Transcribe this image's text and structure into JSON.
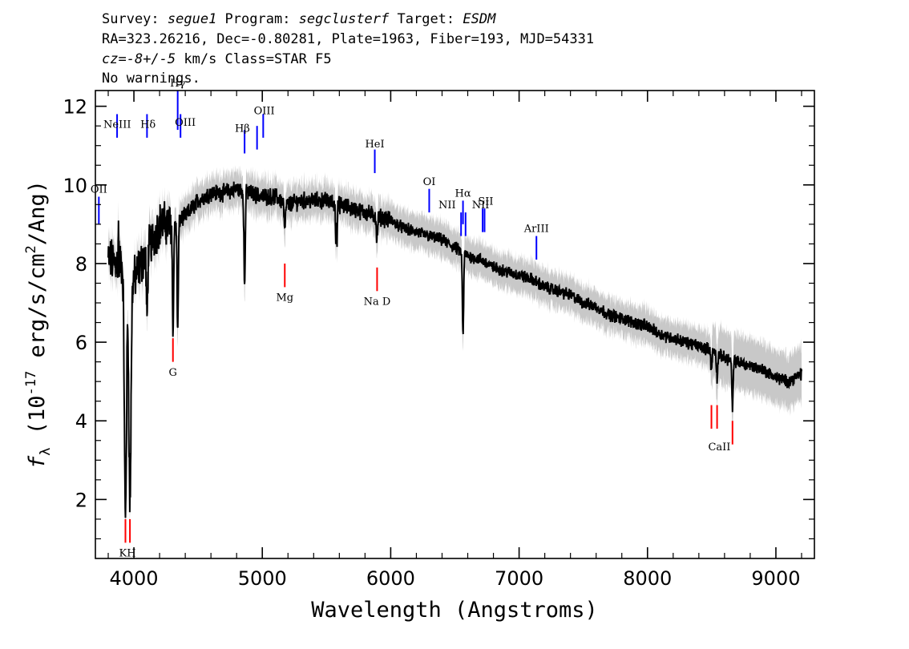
{
  "header": {
    "line1": {
      "survey_label": "Survey: ",
      "survey": "segue1",
      "program_label": " Program: ",
      "program": "segclusterf",
      "target_label": " Target: ",
      "target": "ESDM"
    },
    "line2": "RA=323.26216, Dec=-0.80281, Plate=1963, Fiber=193, MJD=54331",
    "line3": {
      "cz_label": "cz",
      "cz_value": "=-8+/-5",
      "cz_rest": " km/s Class=STAR F5"
    },
    "line4": "No warnings."
  },
  "chart_data": {
    "type": "line",
    "xlabel": "Wavelength (Angstroms)",
    "ylabel": {
      "symbol": "f",
      "subscript": "λ",
      "text_open": " (10",
      "exponent": "-17",
      "text_mid": " erg/s/cm",
      "exponent2": "2",
      "text_close": "/Ang)"
    },
    "xlim": [
      3700,
      9300
    ],
    "ylim": [
      0.5,
      12.4
    ],
    "x_ticks": [
      4000,
      5000,
      6000,
      7000,
      8000,
      9000
    ],
    "x_tick_labels": [
      "4000",
      "5000",
      "6000",
      "7000",
      "8000",
      "9000"
    ],
    "y_ticks": [
      2,
      4,
      6,
      8,
      10,
      12
    ],
    "y_tick_labels": [
      "2",
      "4",
      "6",
      "8",
      "10",
      "12"
    ],
    "spectrum_color": "#000000",
    "error_band_color": "#c8c8c8",
    "emission_color": "#0000ff",
    "absorption_color": "#ff0000",
    "continuum": [
      [
        3800,
        8.1
      ],
      [
        3900,
        8.0
      ],
      [
        4000,
        7.6
      ],
      [
        4100,
        8.3
      ],
      [
        4200,
        9.0
      ],
      [
        4300,
        9.0
      ],
      [
        4400,
        9.2
      ],
      [
        4500,
        9.6
      ],
      [
        4600,
        9.8
      ],
      [
        4700,
        9.8
      ],
      [
        4800,
        9.9
      ],
      [
        4900,
        9.8
      ],
      [
        5000,
        9.7
      ],
      [
        5100,
        9.7
      ],
      [
        5200,
        9.5
      ],
      [
        5300,
        9.6
      ],
      [
        5400,
        9.6
      ],
      [
        5500,
        9.6
      ],
      [
        5600,
        9.5
      ],
      [
        5700,
        9.4
      ],
      [
        5800,
        9.3
      ],
      [
        5900,
        9.2
      ],
      [
        6000,
        9.1
      ],
      [
        6100,
        8.9
      ],
      [
        6200,
        8.8
      ],
      [
        6300,
        8.7
      ],
      [
        6400,
        8.6
      ],
      [
        6500,
        8.4
      ],
      [
        6600,
        8.2
      ],
      [
        6700,
        8.1
      ],
      [
        6800,
        7.9
      ],
      [
        6900,
        7.8
      ],
      [
        7000,
        7.7
      ],
      [
        7100,
        7.6
      ],
      [
        7200,
        7.4
      ],
      [
        7300,
        7.3
      ],
      [
        7400,
        7.2
      ],
      [
        7500,
        7.0
      ],
      [
        7600,
        6.9
      ],
      [
        7700,
        6.7
      ],
      [
        7800,
        6.6
      ],
      [
        7900,
        6.5
      ],
      [
        8000,
        6.4
      ],
      [
        8100,
        6.2
      ],
      [
        8200,
        6.1
      ],
      [
        8300,
        6.0
      ],
      [
        8400,
        5.9
      ],
      [
        8500,
        5.8
      ],
      [
        8600,
        5.6
      ],
      [
        8700,
        5.5
      ],
      [
        8800,
        5.4
      ],
      [
        8900,
        5.3
      ],
      [
        9000,
        5.1
      ],
      [
        9100,
        5.0
      ],
      [
        9200,
        5.2
      ]
    ],
    "absorption_features": [
      {
        "name": "Ca K",
        "x": 3934,
        "y": 1.6
      },
      {
        "name": "Ca H",
        "x": 3969,
        "y": 1.9
      },
      {
        "name": "Hdelta",
        "x": 4102,
        "y": 6.6
      },
      {
        "name": "G",
        "x": 4305,
        "y": 6.3
      },
      {
        "name": "Hgamma",
        "x": 4341,
        "y": 6.3
      },
      {
        "name": "Hbeta",
        "x": 4862,
        "y": 7.4
      },
      {
        "name": "Mg",
        "x": 5175,
        "y": 8.8
      },
      {
        "name": "sky",
        "x": 5577,
        "y": 7.9
      },
      {
        "name": "Na D",
        "x": 5893,
        "y": 8.6
      },
      {
        "name": "Halpha",
        "x": 6563,
        "y": 6.2
      },
      {
        "name": "CaII a",
        "x": 8498,
        "y": 5.3
      },
      {
        "name": "CaII b",
        "x": 8542,
        "y": 5.1
      },
      {
        "name": "CaII c",
        "x": 8662,
        "y": 4.3
      }
    ],
    "spikes": [
      {
        "x": 5577,
        "y": 10.9
      },
      {
        "x": 3880,
        "y": 8.9
      }
    ],
    "emission_lines": [
      {
        "label": "OII",
        "x": 3727,
        "y0": 9.0,
        "y1": 9.7
      },
      {
        "label": "NeIII",
        "x": 3869,
        "y0": 11.2,
        "y1": 11.8
      },
      {
        "label": "Hδ",
        "x": 4102,
        "y0": 11.2,
        "y1": 11.8
      },
      {
        "label": "Hγ",
        "x": 4341,
        "y0": 11.4,
        "y1": 12.4
      },
      {
        "label": "OIII",
        "x": 4363,
        "y0": 11.2,
        "y1": 11.8
      },
      {
        "label": "Hβ",
        "x": 4862,
        "y0": 10.8,
        "y1": 11.4
      },
      {
        "label": "OIII",
        "x": 4959,
        "y0": 10.9,
        "y1": 11.5
      },
      {
        "label": "OIII",
        "x": 5007,
        "y0": 11.2,
        "y1": 11.8
      },
      {
        "label": "HeI",
        "x": 5876,
        "y0": 10.3,
        "y1": 10.9
      },
      {
        "label": "OI",
        "x": 6300,
        "y0": 9.3,
        "y1": 9.9
      },
      {
        "label": "NII",
        "x": 6548,
        "y0": 8.7,
        "y1": 9.3
      },
      {
        "label": "Hα",
        "x": 6563,
        "y0": 9.0,
        "y1": 9.6
      },
      {
        "label": "NII",
        "x": 6583,
        "y0": 8.7,
        "y1": 9.3
      },
      {
        "label": "SII",
        "x": 6716,
        "y0": 8.8,
        "y1": 9.4
      },
      {
        "label": "SII",
        "x": 6731,
        "y0": 8.8,
        "y1": 9.4
      },
      {
        "label": "ArIII",
        "x": 7135,
        "y0": 8.1,
        "y1": 8.7
      }
    ],
    "absorption_lines": [
      {
        "label": "K",
        "x": 3934,
        "y0": 0.9,
        "y1": 1.5
      },
      {
        "label": "H",
        "x": 3969,
        "y0": 0.9,
        "y1": 1.5
      },
      {
        "label": "G",
        "x": 4304,
        "y0": 5.5,
        "y1": 6.1
      },
      {
        "label": "Mg",
        "x": 5175,
        "y0": 7.4,
        "y1": 8.0
      },
      {
        "label": "Na D",
        "x": 5894,
        "y0": 7.3,
        "y1": 7.9
      },
      {
        "label": "CaII",
        "x": 8498,
        "y0": 3.8,
        "y1": 4.4
      },
      {
        "label": "CaII",
        "x": 8542,
        "y0": 3.8,
        "y1": 4.4
      },
      {
        "label": "CaII",
        "x": 8662,
        "y0": 3.4,
        "y1": 4.0
      }
    ],
    "line_labels": [
      {
        "text": "OII",
        "x": 3727,
        "y": 9.8,
        "anchor": "middle"
      },
      {
        "text": "NeIII",
        "x": 3870,
        "y": 11.45,
        "anchor": "middle"
      },
      {
        "text": "Hδ",
        "x": 4110,
        "y": 11.45,
        "anchor": "middle"
      },
      {
        "text": "Hγ",
        "x": 4341,
        "y": 12.5,
        "anchor": "middle"
      },
      {
        "text": "OIII",
        "x": 4400,
        "y": 11.5,
        "anchor": "middle"
      },
      {
        "text": "Hβ",
        "x": 4845,
        "y": 11.35,
        "anchor": "middle"
      },
      {
        "text": "OIII",
        "x": 5015,
        "y": 11.8,
        "anchor": "middle"
      },
      {
        "text": "HeI",
        "x": 5876,
        "y": 10.95,
        "anchor": "middle"
      },
      {
        "text": "OI",
        "x": 6300,
        "y": 10.0,
        "anchor": "middle"
      },
      {
        "text": "NII",
        "x": 6440,
        "y": 9.4,
        "anchor": "middle"
      },
      {
        "text": "Hα",
        "x": 6563,
        "y": 9.7,
        "anchor": "middle"
      },
      {
        "text": "NII",
        "x": 6700,
        "y": 9.4,
        "anchor": "middle"
      },
      {
        "text": "SII",
        "x": 6740,
        "y": 9.5,
        "anchor": "middle"
      },
      {
        "text": "ArIII",
        "x": 7135,
        "y": 8.8,
        "anchor": "middle"
      },
      {
        "text": "Mg",
        "x": 5175,
        "y": 7.05,
        "anchor": "middle"
      },
      {
        "text": "Na D",
        "x": 5894,
        "y": 6.95,
        "anchor": "middle"
      },
      {
        "text": "G",
        "x": 4304,
        "y": 5.15,
        "anchor": "middle"
      },
      {
        "text": "CaII",
        "x": 8560,
        "y": 3.25,
        "anchor": "middle"
      },
      {
        "text": "KH",
        "x": 3950,
        "y": 0.55,
        "anchor": "middle"
      }
    ]
  }
}
